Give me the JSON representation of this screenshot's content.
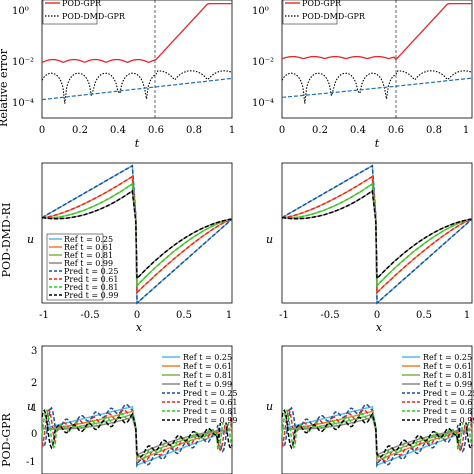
{
  "colors": {
    "pod_gpr": "#e8262b",
    "pod_dmd_gpr": "#000000",
    "ref_blue_dash": "#1f6fb5",
    "ref_025": "#5bb8e8",
    "ref_061": "#f07f2a",
    "ref_081": "#7ab648",
    "ref_099": "#888888",
    "pred_025": "#1a4fa0",
    "pred_061": "#e8262b",
    "pred_081": "#22d022",
    "pred_099": "#000000"
  },
  "row_labels": {
    "row2": "POD-DMD-RI",
    "row3": "POD-GPR"
  },
  "chart_data": [
    {
      "id": "error-left",
      "type": "line",
      "ylabel": "Relative error",
      "xlabel": "t",
      "ylog": true,
      "xlim": [
        0,
        1
      ],
      "ylim": [
        2e-05,
        2
      ],
      "xticks": [
        "0",
        "0.2",
        "0.4",
        "0.6",
        "0.8",
        "1"
      ],
      "yticks": [
        "10⁰",
        "10⁻²",
        "10⁻⁴"
      ],
      "legend": [
        "POD-GPR",
        "POD-DMD-GPR"
      ],
      "vline": 0.6
    },
    {
      "id": "error-right",
      "type": "line",
      "ylog": true,
      "xlabel": "t",
      "xlim": [
        0,
        1
      ],
      "ylim": [
        2e-05,
        2
      ],
      "xticks": [
        "0",
        "0.2",
        "0.4",
        "0.6",
        "0.8",
        "1"
      ],
      "yticks": [
        "10⁰",
        "10⁻²",
        "10⁻⁴"
      ],
      "legend": [
        "POD-GPR",
        "POD-DMD-GPR"
      ],
      "vline": 0.6
    },
    {
      "id": "profile-dmd-left",
      "type": "line",
      "xlabel": "x",
      "ylabel": "u",
      "xlim": [
        -1,
        1
      ],
      "ylim": [
        -1,
        1
      ],
      "xticks": [
        "-1",
        "-0.5",
        "0",
        "0.5",
        "1"
      ],
      "legend": [
        "Ref t = 0.25",
        "Ref t = 0.61",
        "Ref t = 0.81",
        "Ref t = 0.99",
        "Pred t = 0.25",
        "Pred t = 0.61",
        "Pred t = 0.81",
        "Pred t = 0.99"
      ]
    },
    {
      "id": "profile-dmd-right",
      "type": "line",
      "xlabel": "x",
      "ylabel": "u",
      "xlim": [
        -1,
        1
      ],
      "ylim": [
        -1,
        1
      ],
      "xticks": [
        "-1",
        "-0.5",
        "0",
        "0.5",
        "1"
      ]
    },
    {
      "id": "profile-gpr-left",
      "type": "line",
      "ylabel": "u",
      "xlim": [
        -1,
        1
      ],
      "ylim": [
        -1.3,
        3
      ],
      "yticks": [
        "3",
        "2",
        "1",
        "0",
        "-1"
      ],
      "legend": [
        "Ref t = 0.25",
        "Ref t = 0.61",
        "Ref t = 0.81",
        "Ref t = 0.99",
        "Pred t = 0.25",
        "Pred t = 0.61",
        "Pred t = 0.81",
        "Pred t = 0.99"
      ]
    },
    {
      "id": "profile-gpr-right",
      "type": "line",
      "ylabel": "u",
      "xlim": [
        -1,
        1
      ],
      "ylim": [
        -1.3,
        3
      ],
      "legend": [
        "Ref t = 0.25",
        "Ref t = 0.61",
        "Ref t = 0.81",
        "Ref t = 0.99",
        "Pred t = 0.25",
        "Pred t = 0.61",
        "Pred t = 0.81",
        "Pred t = 0.99"
      ]
    }
  ]
}
